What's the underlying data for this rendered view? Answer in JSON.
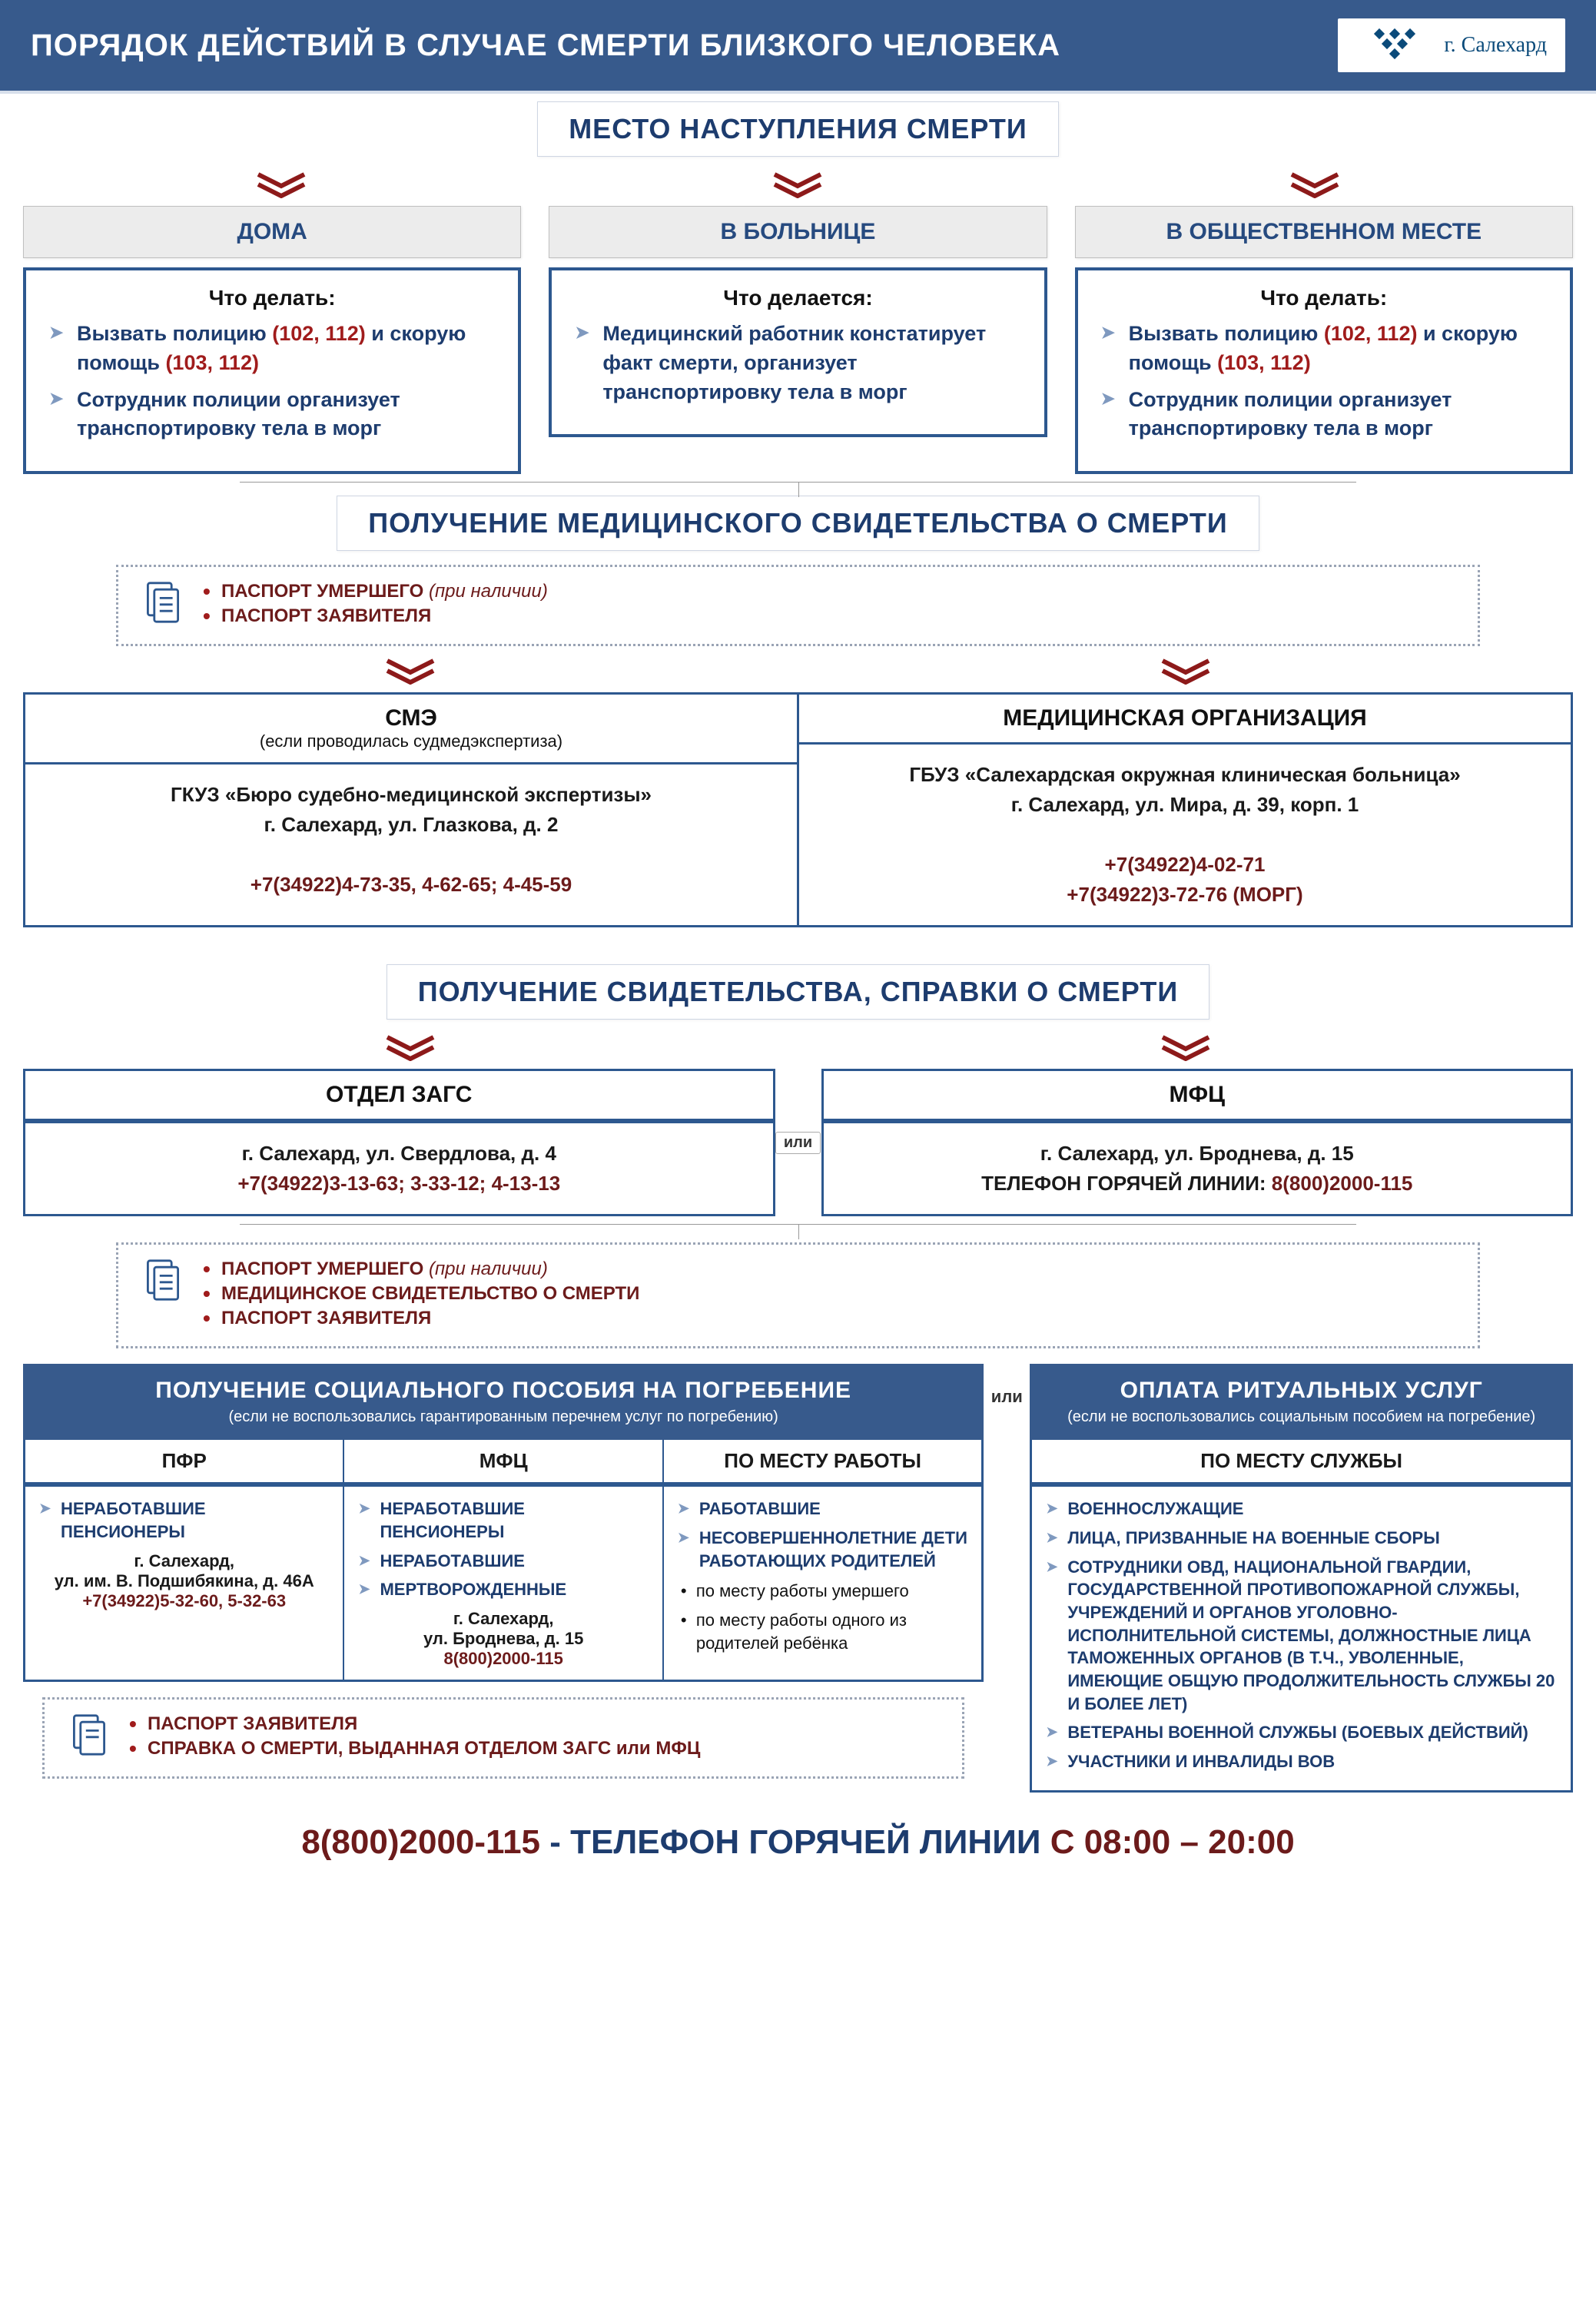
{
  "header": {
    "title": "ПОРЯДОК ДЕЙСТВИЙ В СЛУЧАЕ СМЕРТИ БЛИЗКОГО ЧЕЛОВЕКА",
    "city": "г. Салехард"
  },
  "s1": {
    "title": "МЕСТО НАСТУПЛЕНИЯ СМЕРТИ",
    "cols": [
      {
        "head": "ДОМА",
        "sub": "Что делать:",
        "items": [
          "Вызвать полицию <span class='red'>(102, 112)</span> и скорую помощь <span class='red'>(103, 112)</span>",
          "Сотрудник полиции организует транспортировку тела в морг"
        ]
      },
      {
        "head": "В БОЛЬНИЦЕ",
        "sub": "Что делается:",
        "items": [
          "Медицинский работник констатирует факт смерти, организует транспортировку тела в морг"
        ]
      },
      {
        "head": "В ОБЩЕСТВЕННОМ МЕСТЕ",
        "sub": "Что делать:",
        "items": [
          "Вызвать полицию <span class='red'>(102, 112)</span> и скорую помощь <span class='red'>(103, 112)</span>",
          "Сотрудник полиции организует транспортировку тела в морг"
        ]
      }
    ]
  },
  "s2": {
    "title": "ПОЛУЧЕНИЕ МЕДИЦИНСКОГО СВИДЕТЕЛЬСТВА О СМЕРТИ",
    "docs": [
      "ПАСПОРТ УМЕРШЕГО <span class='ital'>(при наличии)</span>",
      "ПАСПОРТ ЗАЯВИТЕЛЯ"
    ],
    "orgs": [
      {
        "head": "СМЭ",
        "sub": "(если проводилась судмедэкспертиза)",
        "body": "ГКУЗ «Бюро судебно-медицинской экспертизы»<br>г. Салехард, ул. Глазкова, д. 2<br><br><span class='maroon'>+7(34922)4-73-35, 4-62-65; 4-45-59</span>"
      },
      {
        "head": "МЕДИЦИНСКАЯ ОРГАНИЗАЦИЯ",
        "sub": "",
        "body": "ГБУЗ «Салехардская окружная клиническая больница»<br>г. Салехард, ул. Мира, д. 39, корп. 1<br><br><span class='maroon'>+7(34922)4-02-71<br>+7(34922)3-72-76 (МОРГ)</span>"
      }
    ]
  },
  "s3": {
    "title": "ПОЛУЧЕНИЕ СВИДЕТЕЛЬСТВА, СПРАВКИ О СМЕРТИ",
    "ili": "или",
    "orgs": [
      {
        "head": "ОТДЕЛ  ЗАГС",
        "body": "г. Салехард, ул. Свердлова, д. 4<br><span class='maroon'>+7(34922)3-13-63; 3-33-12;  4-13-13</span>"
      },
      {
        "head": "МФЦ",
        "body": "г. Салехард, ул. Броднева, д. 15<br><b>ТЕЛЕФОН ГОРЯЧЕЙ ЛИНИИ: <span class='maroon'>8(800)2000-115</span></b>"
      }
    ],
    "docs": [
      "ПАСПОРТ УМЕРШЕГО <span class='ital'>(при наличии)</span>",
      "МЕДИЦИНСКОЕ СВИДЕТЕЛЬСТВО О СМЕРТИ",
      "ПАСПОРТ ЗАЯВИТЕЛЯ"
    ]
  },
  "s4": {
    "left": {
      "title": "ПОЛУЧЕНИЕ СОЦИАЛЬНОГО ПОСОБИЯ НА ПОГРЕБЕНИЕ",
      "sub": "(если не воспользовались гарантированным перечнем услуг по погребению)",
      "cols": [
        {
          "head": "ПФР",
          "arrows": [
            "НЕРАБОТАВШИЕ ПЕНСИОНЕРЫ"
          ],
          "addr": "г. Салехард,<br>ул. им. В. Подшибякина, д. 46А<br><span class='maroon'>+7(34922)5-32-60, 5-32-63</span>"
        },
        {
          "head": "МФЦ",
          "arrows": [
            "НЕРАБОТАВШИЕ ПЕНСИОНЕРЫ",
            "НЕРАБОТАВШИЕ",
            "МЕРТВОРОЖДЕННЫЕ"
          ],
          "addr": "г. Салехард,<br>ул. Броднева, д. 15<br><span class='maroon'>8(800)2000-115</span>"
        },
        {
          "head": "ПО МЕСТУ РАБОТЫ",
          "arrows": [
            "РАБОТАВШИЕ",
            "НЕСОВЕРШЕННОЛЕТНИЕ ДЕТИ РАБОТАЮЩИХ РОДИТЕЛЕЙ"
          ],
          "dots": [
            "по месту работы умершего",
            "по месту работы одного из родителей ребёнка"
          ]
        }
      ],
      "docs": [
        "ПАСПОРТ ЗАЯВИТЕЛЯ",
        "СПРАВКА О СМЕРТИ, ВЫДАННАЯ ОТДЕЛОМ ЗАГС или МФЦ"
      ]
    },
    "ili": "или",
    "right": {
      "title": "ОПЛАТА РИТУАЛЬНЫХ УСЛУГ",
      "sub": "(если не воспользовались социальным пособием на погребение)",
      "head": "ПО МЕСТУ СЛУЖБЫ",
      "arrows": [
        "ВОЕННОСЛУЖАЩИЕ",
        "ЛИЦА, ПРИЗВАННЫЕ НА ВОЕННЫЕ СБОРЫ",
        "СОТРУДНИКИ ОВД, НАЦИОНАЛЬНОЙ ГВАРДИИ, ГОСУДАРСТВЕННОЙ ПРОТИВОПОЖАРНОЙ СЛУЖБЫ, УЧРЕЖДЕНИЙ И ОРГАНОВ УГОЛОВНО-ИСПОЛНИТЕЛЬНОЙ СИСТЕМЫ, ДОЛЖНОСТНЫЕ ЛИЦА ТАМОЖЕННЫХ ОРГАНОВ (В Т.Ч., УВОЛЕННЫЕ, ИМЕЮЩИЕ ОБЩУЮ ПРОДОЛЖИТЕЛЬНОСТЬ  СЛУЖБЫ 20 И БОЛЕЕ ЛЕТ)",
        "ВЕТЕРАНЫ ВОЕННОЙ СЛУЖБЫ (БОЕВЫХ ДЕЙСТВИЙ)",
        "УЧАСТНИКИ И ИНВАЛИДЫ ВОВ"
      ]
    }
  },
  "footer": {
    "phone": "8(800)2000-115",
    "text": " - ТЕЛЕФОН ГОРЯЧЕЙ ЛИНИИ ",
    "hours": "С 08:00 – 20:00"
  },
  "colors": {
    "chevron": "#8d1a1a",
    "primary": "#375a8c",
    "border": "#2d588f"
  }
}
